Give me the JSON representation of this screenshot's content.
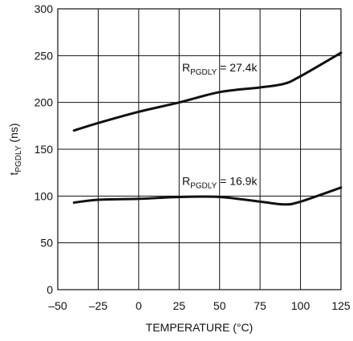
{
  "chart_data": {
    "type": "line",
    "xlabel": "TEMPERATURE (°C)",
    "ylabel": {
      "main": "t",
      "sub": "PGDLY",
      "unit": " (ns)"
    },
    "xlim": [
      -50,
      125
    ],
    "ylim": [
      0,
      300
    ],
    "x_ticks": [
      -50,
      -25,
      0,
      25,
      50,
      75,
      100,
      125
    ],
    "x_tick_labels": [
      "–50",
      "–25",
      "0",
      "25",
      "50",
      "75",
      "100",
      "125"
    ],
    "y_ticks": [
      0,
      50,
      100,
      150,
      200,
      250,
      300
    ],
    "y_tick_labels": [
      "0",
      "50",
      "100",
      "150",
      "200",
      "250",
      "300"
    ],
    "grid": true,
    "series": [
      {
        "x": [
          -40,
          -25,
          0,
          25,
          50,
          75,
          90,
          100,
          125
        ],
        "y": [
          170,
          178,
          190,
          200,
          211,
          216,
          220,
          228,
          253
        ],
        "label": {
          "main": "R",
          "sub": "PGDLY",
          "rest": " = 27.4k",
          "x": 50,
          "y": 233
        }
      },
      {
        "x": [
          -40,
          -25,
          0,
          25,
          50,
          75,
          90,
          100,
          125
        ],
        "y": [
          93,
          96,
          97,
          99,
          99,
          94,
          91,
          94,
          109
        ],
        "label": {
          "main": "R",
          "sub": "PGDLY",
          "rest": " = 16.9k",
          "x": 50,
          "y": 112
        }
      }
    ]
  }
}
